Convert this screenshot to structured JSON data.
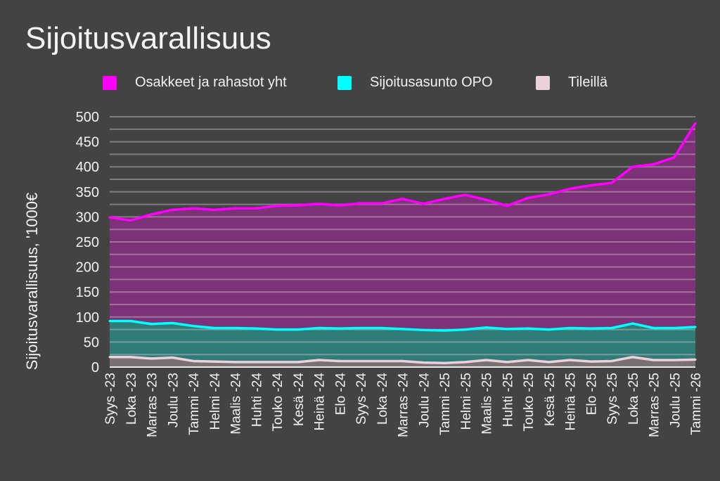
{
  "chart_data": {
    "type": "area",
    "title": "Sijoitusvarallisuus",
    "xlabel": "",
    "ylabel": "Sijoitusvarallisuus, '1000€",
    "ylim": [
      0,
      500
    ],
    "yticks": [
      0,
      50,
      100,
      150,
      200,
      250,
      300,
      350,
      400,
      450,
      500
    ],
    "grid": true,
    "legend_position": "top-center",
    "categories": [
      "Syys -23",
      "Loka -23",
      "Marras -23",
      "Joulu -23",
      "Tammi -24",
      "Helmi -24",
      "Maalis -24",
      "Huhti -24",
      "Touko -24",
      "Kesä -24",
      "Heinä -24",
      "Elo -24",
      "Syys -24",
      "Loka -24",
      "Marras -24",
      "Joulu -24",
      "Tammi -25",
      "Helmi -25",
      "Maalis -25",
      "Huhti -25",
      "Touko -25",
      "Kesä -25",
      "Heinä -25",
      "Elo -25",
      "Syys -25",
      "Loka -25",
      "Marras -25",
      "Joulu -25",
      "Tammi -26"
    ],
    "series": [
      {
        "name": "Osakkeet ja rahastot yht",
        "color": "#ff00ff",
        "fill": "#7d3178",
        "values": [
          299,
          293,
          305,
          314,
          317,
          314,
          317,
          317,
          322,
          323,
          326,
          323,
          327,
          327,
          336,
          326,
          336,
          344,
          334,
          322,
          338,
          345,
          356,
          363,
          368,
          400,
          405,
          419,
          487
        ]
      },
      {
        "name": "Sijoitusasunto OPO",
        "color": "#00ffff",
        "fill": "#2f7b78",
        "values": [
          92,
          92,
          86,
          88,
          82,
          78,
          78,
          77,
          75,
          75,
          78,
          77,
          78,
          78,
          76,
          74,
          73,
          75,
          79,
          76,
          77,
          75,
          78,
          77,
          78,
          87,
          78,
          78,
          80
        ]
      },
      {
        "name": "Tileillä",
        "color": "#ead1dc",
        "fill": "#7a7071",
        "values": [
          20,
          20,
          17,
          19,
          12,
          11,
          10,
          10,
          10,
          10,
          14,
          12,
          12,
          12,
          12,
          9,
          8,
          10,
          14,
          10,
          14,
          10,
          14,
          11,
          12,
          20,
          14,
          14,
          15
        ]
      }
    ]
  }
}
